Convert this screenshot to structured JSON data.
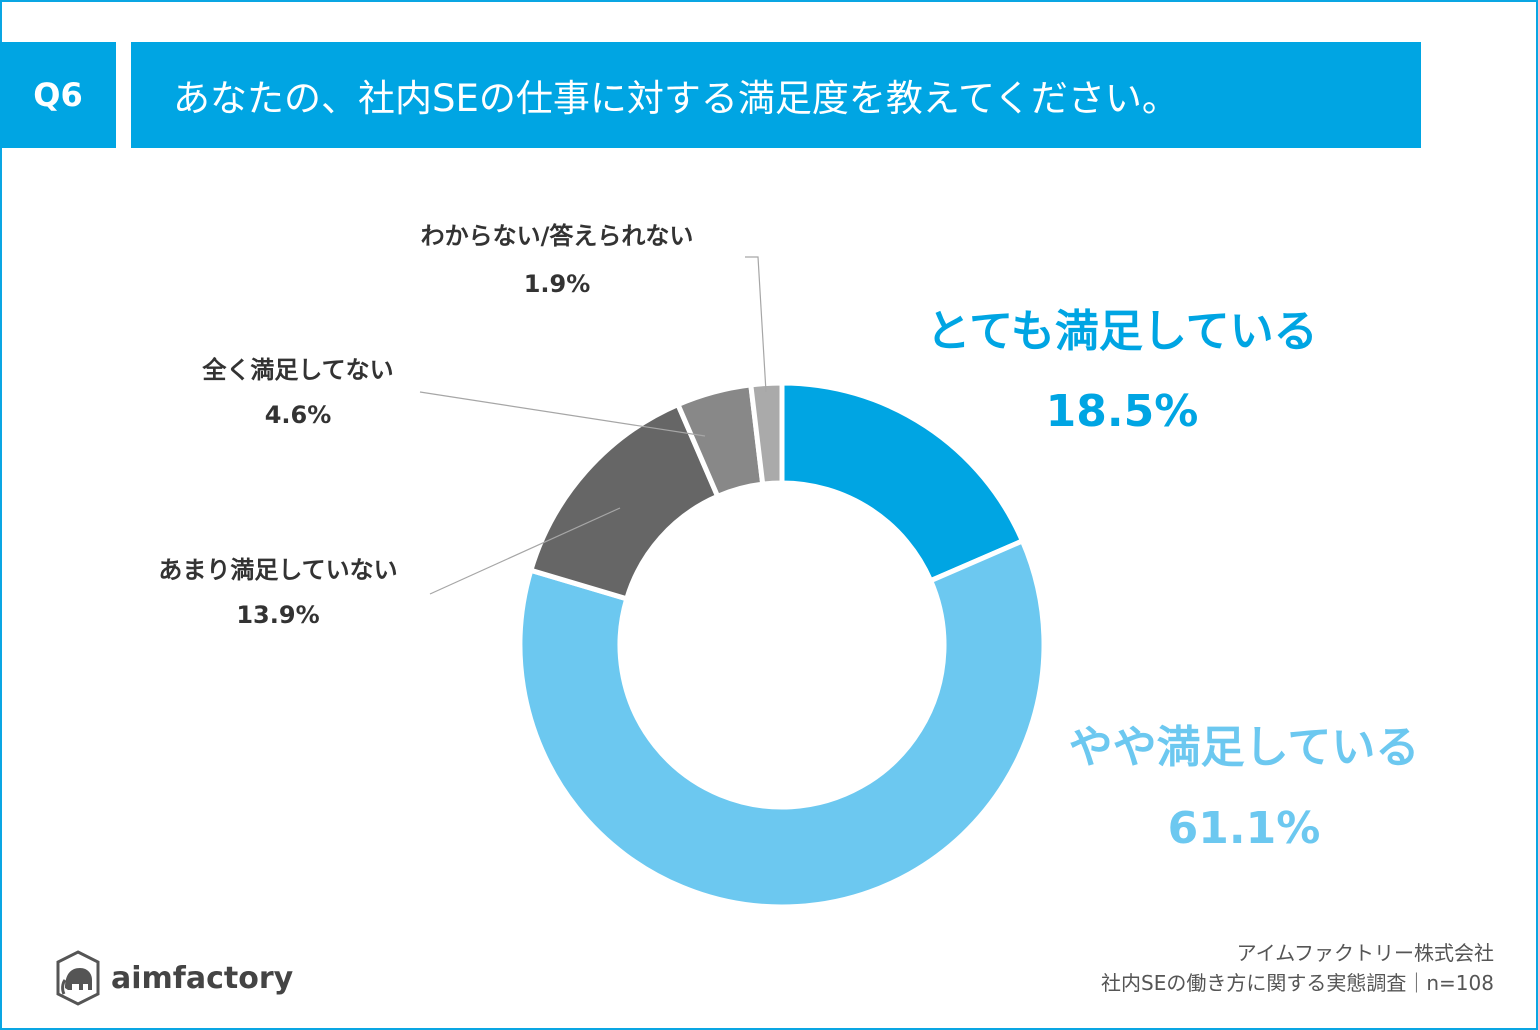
{
  "header": {
    "question_no": "Q6",
    "question": "あなたの、社内SEの仕事に対する満足度を教えてください。"
  },
  "chart_data": {
    "type": "pie",
    "variant": "donut",
    "start": "12 o'clock",
    "direction": "clockwise",
    "slices": [
      {
        "label": "とても満足している",
        "value": 18.5,
        "display": "18.5%",
        "color": "#00a5e3",
        "label_color": "#00a5e3"
      },
      {
        "label": "やや満足している",
        "value": 61.1,
        "display": "61.1%",
        "color": "#6cc8f0",
        "label_color": "#6cc8f0"
      },
      {
        "label": "あまり満足していない",
        "value": 13.9,
        "display": "13.9%",
        "color": "#666666",
        "label_color": "#333333"
      },
      {
        "label": "全く満足してない",
        "value": 4.6,
        "display": "4.6%",
        "color": "#888888",
        "label_color": "#333333"
      },
      {
        "label": "わからない/答えられない",
        "value": 1.9,
        "display": "1.9%",
        "color": "#aaaaaa",
        "label_color": "#333333"
      }
    ]
  },
  "footer": {
    "source_line1": "アイムファクトリー株式会社",
    "source_line2": "社内SEの働き方に関する実態調査｜n=108",
    "logo_text": "aimfactory"
  }
}
